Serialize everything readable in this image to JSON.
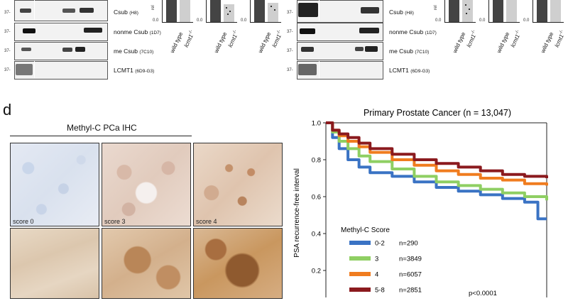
{
  "panel_d_letter": "d",
  "blots": {
    "labels": [
      {
        "main": "Csub",
        "clone": "(H8)"
      },
      {
        "main": "nonme Csub",
        "clone": "(1D7)"
      },
      {
        "main": "me Csub",
        "clone": "(7C10)"
      },
      {
        "main": "LCMT1",
        "clone": "(6D9-G3)"
      }
    ],
    "mw_marker": "37-"
  },
  "bar_charts": {
    "y_label_fragment": "rel",
    "y_zero": "0.0",
    "categories": [
      "wild type",
      "lcmt1-/-"
    ],
    "lcmt1_base": "lcmt1",
    "lcmt1_sup": "-/-",
    "wild_type_label": "wild type"
  },
  "ihc": {
    "title": "Methyl-C PCa IHC",
    "score_labels": [
      "score 0",
      "score 3",
      "score 4"
    ]
  },
  "chart_data": {
    "type": "line",
    "title": "Primary Prostate Cancer (n = 13,047)",
    "ylabel": "PSA recurrence-free interval",
    "ylim": [
      0,
      1.0
    ],
    "yticks": [
      "1.0",
      "0.8",
      "0.6",
      "0.4",
      "0.2"
    ],
    "legend_title": "Methyl-C Score",
    "pvalue": "p<0.0001",
    "series": [
      {
        "name": "0-2",
        "n": "n=290",
        "color": "#3a73c4",
        "x": [
          0,
          0.03,
          0.06,
          0.1,
          0.15,
          0.2,
          0.3,
          0.4,
          0.5,
          0.6,
          0.7,
          0.8,
          0.9,
          0.94,
          0.96,
          1.0
        ],
        "y": [
          1.0,
          0.92,
          0.86,
          0.8,
          0.76,
          0.73,
          0.71,
          0.68,
          0.65,
          0.63,
          0.61,
          0.59,
          0.57,
          0.57,
          0.48,
          0.48
        ]
      },
      {
        "name": "3",
        "n": "n=3849",
        "color": "#8fcf63",
        "x": [
          0,
          0.03,
          0.06,
          0.1,
          0.15,
          0.2,
          0.3,
          0.4,
          0.5,
          0.6,
          0.7,
          0.8,
          0.9,
          1.0
        ],
        "y": [
          1.0,
          0.95,
          0.9,
          0.86,
          0.82,
          0.79,
          0.75,
          0.71,
          0.68,
          0.66,
          0.64,
          0.62,
          0.6,
          0.58
        ]
      },
      {
        "name": "4",
        "n": "n=6057",
        "color": "#f07c1f",
        "x": [
          0,
          0.03,
          0.06,
          0.1,
          0.15,
          0.2,
          0.3,
          0.4,
          0.5,
          0.6,
          0.7,
          0.8,
          0.9,
          1.0
        ],
        "y": [
          1.0,
          0.96,
          0.93,
          0.9,
          0.87,
          0.84,
          0.8,
          0.77,
          0.74,
          0.72,
          0.7,
          0.69,
          0.67,
          0.66
        ]
      },
      {
        "name": "5-8",
        "n": "n=2851",
        "color": "#8b1a1e",
        "x": [
          0,
          0.03,
          0.06,
          0.1,
          0.15,
          0.2,
          0.3,
          0.4,
          0.5,
          0.6,
          0.7,
          0.8,
          0.9,
          1.0
        ],
        "y": [
          1.0,
          0.96,
          0.94,
          0.92,
          0.89,
          0.86,
          0.83,
          0.8,
          0.78,
          0.76,
          0.74,
          0.72,
          0.71,
          0.7
        ]
      }
    ]
  }
}
